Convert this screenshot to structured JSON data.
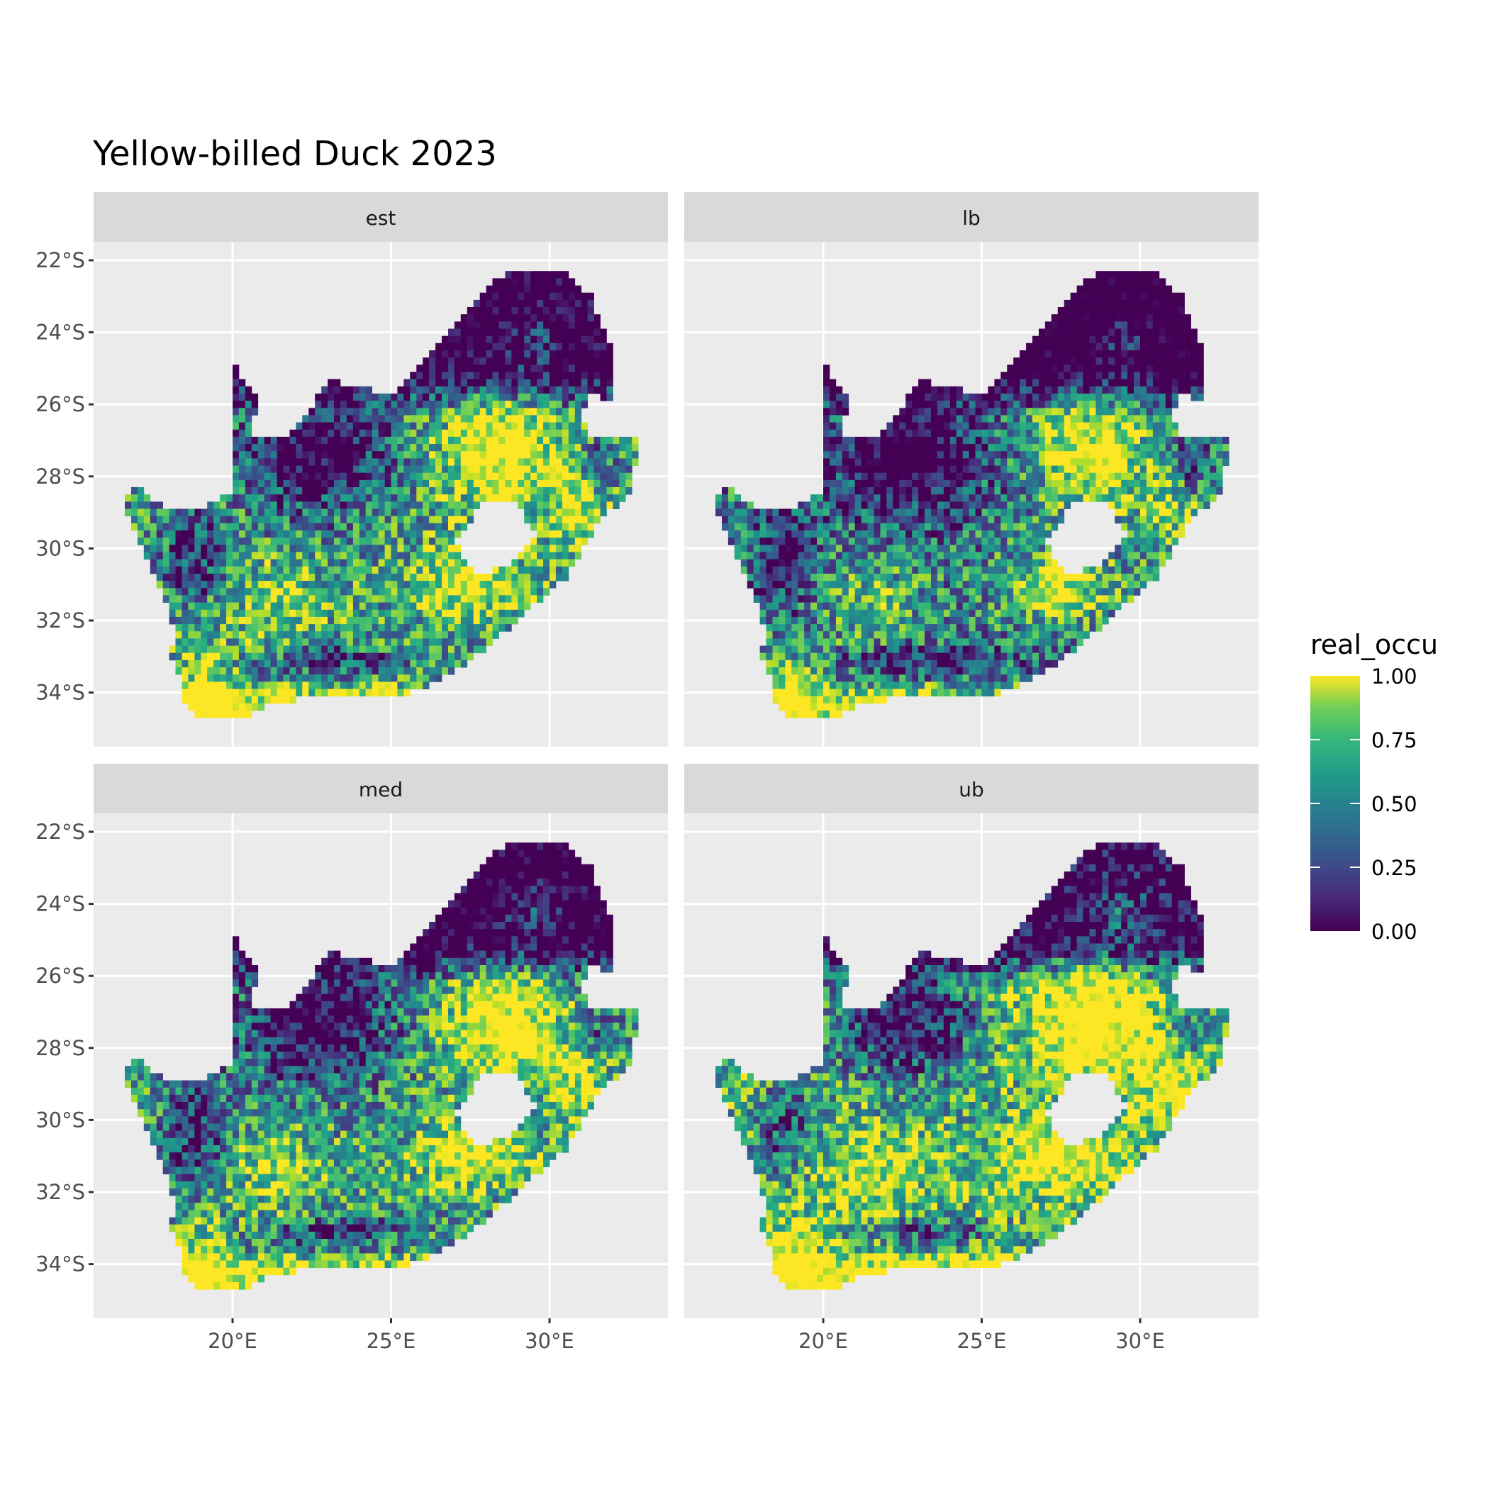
{
  "chart_data": {
    "type": "heatmap",
    "title": "Yellow-billed Duck 2023",
    "facets": [
      "est",
      "lb",
      "med",
      "ub"
    ],
    "xlabel": "",
    "ylabel": "",
    "x_ticks": [
      "20°E",
      "25°E",
      "30°E"
    ],
    "x_tick_values": [
      20,
      25,
      30
    ],
    "y_ticks": [
      "22°S",
      "24°S",
      "26°S",
      "28°S",
      "30°S",
      "32°S",
      "34°S"
    ],
    "y_tick_values": [
      -22,
      -24,
      -26,
      -28,
      -30,
      -32,
      -34
    ],
    "xlim": [
      15.6,
      33.7
    ],
    "ylim": [
      -35.5,
      -21.5
    ],
    "grid": true,
    "legend": {
      "title": "real_occu",
      "position": "right",
      "colorscale": "viridis",
      "range": [
        0,
        1
      ],
      "labels": [
        "1.00",
        "0.75",
        "0.50",
        "0.25",
        "0.00"
      ],
      "label_values": [
        1,
        0.75,
        0.5,
        0.25,
        0
      ]
    },
    "colors": {
      "panel_bg": "#ebebeb",
      "strip_bg": "#d9d9d9",
      "grid": "#ffffff",
      "low": "#440154",
      "high": "#fde725"
    }
  }
}
